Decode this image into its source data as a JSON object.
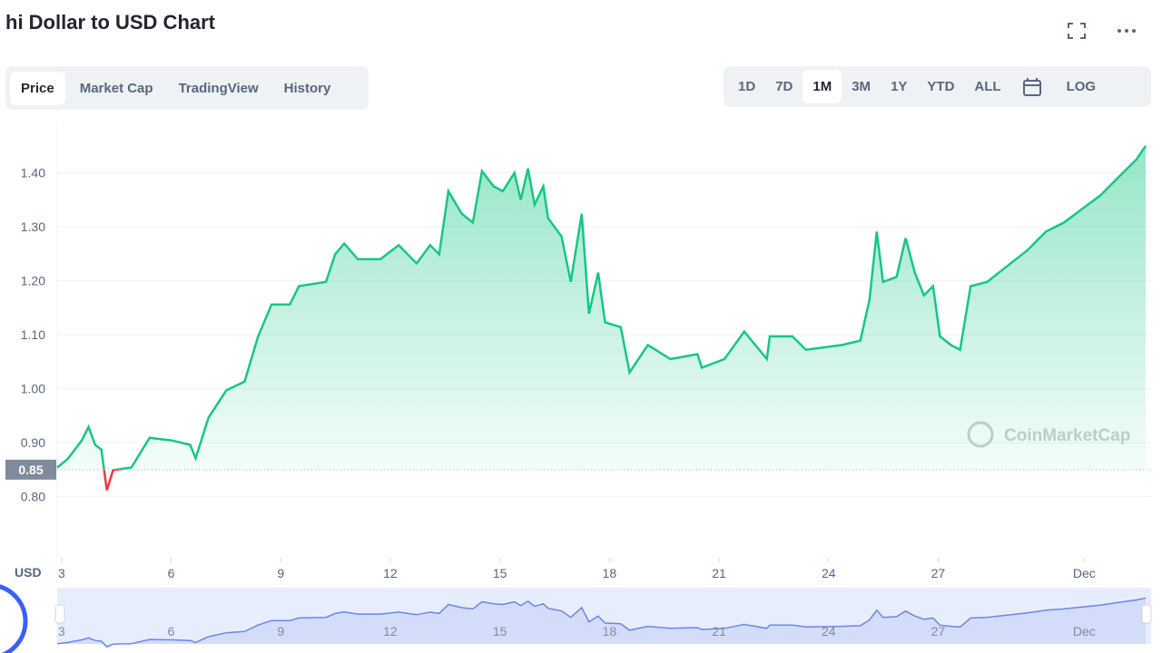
{
  "header": {
    "title": "hi Dollar to USD Chart"
  },
  "tabs": [
    "Price",
    "Market Cap",
    "TradingView",
    "History"
  ],
  "ranges": [
    "1D",
    "7D",
    "1M",
    "3M",
    "1Y",
    "YTD",
    "ALL"
  ],
  "log_button": "LOG",
  "chart_data": {
    "type": "line",
    "color": "#16c784",
    "below_color": "#ea3943",
    "y_label": "USD",
    "watermark": "CoinMarketCap",
    "baseline": {
      "value": 0.85,
      "label": "0.85"
    },
    "grid": true,
    "x": [
      2.88,
      3.17,
      3.55,
      3.74,
      3.92,
      4.09,
      4.24,
      4.41,
      4.91,
      5.41,
      6.03,
      6.52,
      6.67,
      7.02,
      7.51,
      8.01,
      8.38,
      8.75,
      9.25,
      9.5,
      10.24,
      10.49,
      10.74,
      11.11,
      11.73,
      12.23,
      12.72,
      13.09,
      13.34,
      13.59,
      13.96,
      14.26,
      14.51,
      14.83,
      15.08,
      15.4,
      15.57,
      15.77,
      15.95,
      16.19,
      16.32,
      16.69,
      16.94,
      17.24,
      17.44,
      17.69,
      17.88,
      18.31,
      18.55,
      19.05,
      19.67,
      20.41,
      20.53,
      21.15,
      21.69,
      22.31,
      22.39,
      23.01,
      23.38,
      24.37,
      24.87,
      25.12,
      25.32,
      25.49,
      25.86,
      26.11,
      26.36,
      26.61,
      26.86,
      27.05,
      27.35,
      27.6,
      27.89,
      28.34,
      28.83,
      29.45,
      29.95,
      30.45,
      30.94,
      31.44,
      31.94,
      32.43,
      32.68
    ],
    "values": [
      0.854,
      0.87,
      0.904,
      0.929,
      0.896,
      0.887,
      0.812,
      0.849,
      0.854,
      0.909,
      0.904,
      0.896,
      0.871,
      0.946,
      0.997,
      1.013,
      1.097,
      1.156,
      1.156,
      1.19,
      1.198,
      1.249,
      1.269,
      1.24,
      1.24,
      1.266,
      1.232,
      1.266,
      1.249,
      1.366,
      1.324,
      1.308,
      1.403,
      1.375,
      1.366,
      1.4,
      1.35,
      1.408,
      1.341,
      1.375,
      1.316,
      1.282,
      1.198,
      1.324,
      1.139,
      1.215,
      1.123,
      1.114,
      1.03,
      1.081,
      1.055,
      1.064,
      1.039,
      1.055,
      1.106,
      1.055,
      1.097,
      1.097,
      1.072,
      1.081,
      1.089,
      1.165,
      1.291,
      1.198,
      1.207,
      1.279,
      1.215,
      1.173,
      1.19,
      1.097,
      1.081,
      1.072,
      1.19,
      1.198,
      1.224,
      1.257,
      1.291,
      1.308,
      1.333,
      1.358,
      1.392,
      1.425,
      1.45
    ],
    "xlim": [
      2.88,
      32.83
    ],
    "xticks": [
      3,
      6,
      9,
      12,
      15,
      18,
      21,
      24,
      27,
      {
        "value": 31,
        "label": "Dec"
      }
    ],
    "ylim": [
      0.78,
      1.49
    ],
    "yticks": [
      {
        "value": 0.8,
        "label": "0.80"
      },
      {
        "value": 0.9,
        "label": "0.90"
      },
      {
        "value": 1.0,
        "label": "1.00"
      },
      {
        "value": 1.1,
        "label": "1.10"
      },
      {
        "value": 1.2,
        "label": "1.20"
      },
      {
        "value": 1.3,
        "label": "1.30"
      },
      {
        "value": 1.4,
        "label": "1.40"
      }
    ]
  }
}
